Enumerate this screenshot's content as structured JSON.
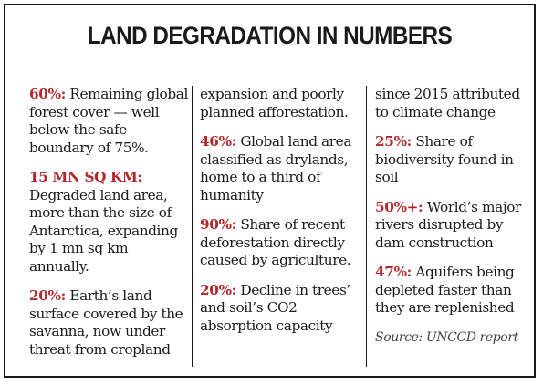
{
  "title": "LAND DEGRADATION IN NUMBERS",
  "colors": {
    "highlight": "#b3282d",
    "text": "#1a1a1a",
    "border": "#1a1a1a"
  },
  "columns": [
    {
      "items": [
        {
          "highlight": "60%:",
          "text": " Remaining global forest cover — well below the safe boundary of 75%."
        },
        {
          "highlight": "15 MN SQ KM:",
          "text": " Degraded land area, more than the size of Antarctica, expanding by 1 mn sq km annually."
        },
        {
          "highlight": "20%:",
          "text": " Earth’s land surface covered by the savanna, now under threat from cropland"
        }
      ]
    },
    {
      "continuation": "expansion and poorly planned afforestation.",
      "items": [
        {
          "highlight": "46%:",
          "text": " Global land area classified as drylands, home to a third of humanity"
        },
        {
          "highlight": "90%:",
          "text": " Share of recent deforestation directly caused by agriculture."
        },
        {
          "highlight": "20%:",
          "text": " Decline in trees’ and soil’s CO2 absorption capacity"
        }
      ]
    },
    {
      "continuation": "since 2015 attributed to climate change",
      "items": [
        {
          "highlight": "25%:",
          "text": " Share of biodiversity found in soil"
        },
        {
          "highlight": "50%+:",
          "text": " World’s major rivers disrupted by dam construction"
        },
        {
          "highlight": "47%:",
          "text": " Aquifers being depleted faster than they are replenished"
        }
      ],
      "source": "Source: UNCCD report"
    }
  ]
}
